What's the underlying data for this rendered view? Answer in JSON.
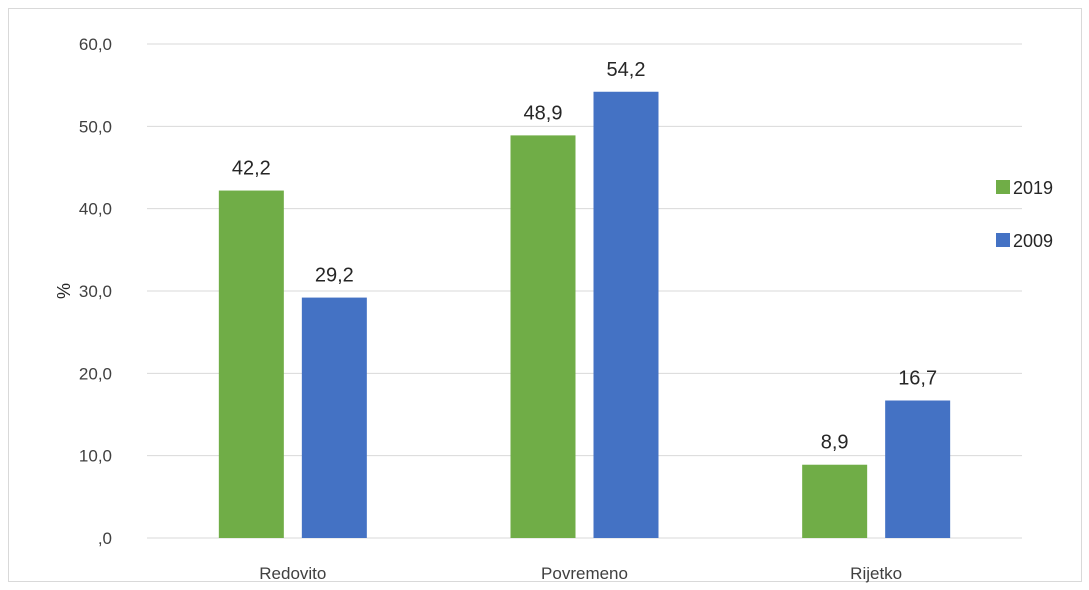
{
  "chart_data": {
    "type": "bar",
    "categories": [
      "Redovito",
      "Povremeno",
      "Rijetko"
    ],
    "series": [
      {
        "name": "2019",
        "color": "#70ad47",
        "values": [
          42.2,
          48.9,
          8.9
        ],
        "labels": [
          "42,2",
          "48,9",
          "8,9"
        ]
      },
      {
        "name": "2009",
        "color": "#4472c4",
        "values": [
          29.2,
          54.2,
          16.7
        ],
        "labels": [
          "29,2",
          "54,2",
          "16,7"
        ]
      }
    ],
    "ylabel": "%",
    "ylim": [
      0,
      60
    ],
    "yticks": [
      0,
      10,
      20,
      30,
      40,
      50,
      60
    ],
    "ytick_labels": [
      ",0",
      "10,0",
      "20,0",
      "30,0",
      "40,0",
      "50,0",
      "60,0"
    ],
    "grid": true,
    "legend_position": "right"
  }
}
